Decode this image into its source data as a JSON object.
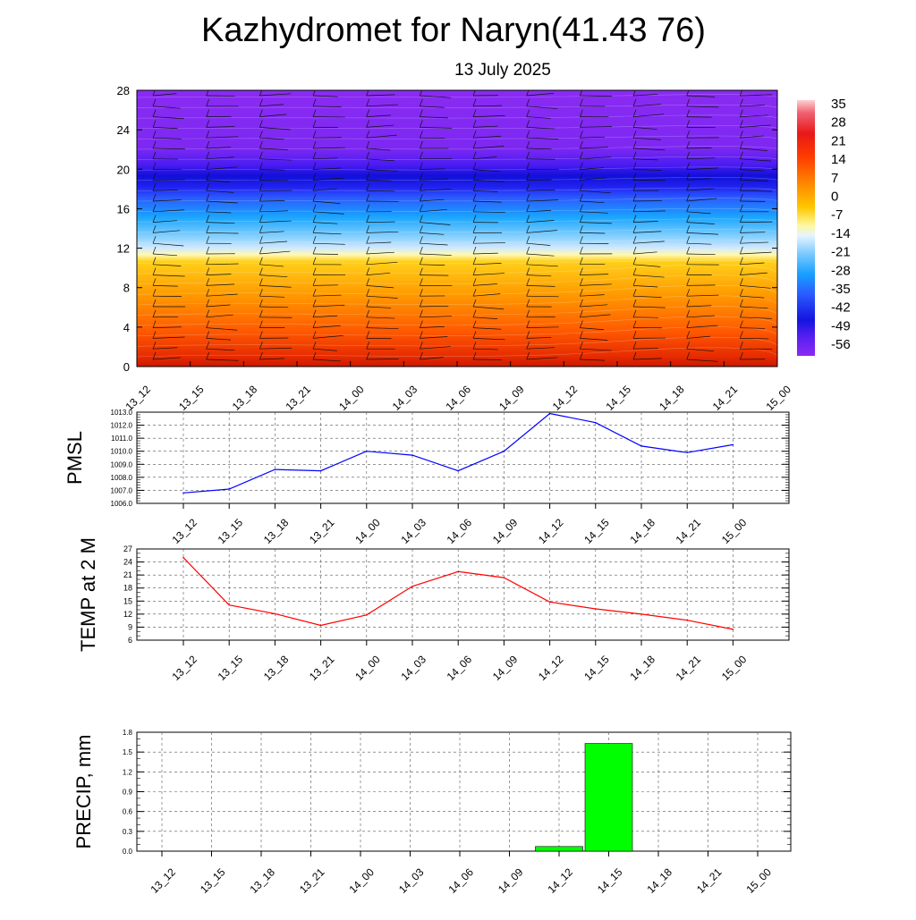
{
  "title": "Kazhydromet for Naryn(41.43 76)",
  "subtitle": "13 July 2025",
  "time_labels": [
    "13_12",
    "13_15",
    "13_18",
    "13_21",
    "14_00",
    "14_03",
    "14_06",
    "14_09",
    "14_12",
    "14_15",
    "14_18",
    "14_21",
    "15_00"
  ],
  "colorbar": {
    "labels": [
      "35",
      "28",
      "21",
      "14",
      "7",
      "0",
      "-7",
      "-14",
      "-21",
      "-28",
      "-35",
      "-42",
      "-49",
      "-56"
    ]
  },
  "chart_data": [
    {
      "type": "heatmap",
      "description_note": "",
      "x": [
        "13_12",
        "13_15",
        "13_18",
        "13_21",
        "14_00",
        "14_03",
        "14_06",
        "14_09",
        "14_12",
        "14_15",
        "14_18",
        "14_21",
        "15_00"
      ],
      "ylim": [
        0,
        28
      ],
      "yticks": [
        "0",
        "4",
        "8",
        "12",
        "16",
        "20",
        "24",
        "28"
      ],
      "colorbar_range": [
        -56,
        35
      ],
      "wind_barbs": true
    },
    {
      "type": "line",
      "ylabel": "PMSL",
      "color": "#0000ff",
      "x": [
        "13_12",
        "13_15",
        "13_18",
        "13_21",
        "14_00",
        "14_03",
        "14_06",
        "14_09",
        "14_12",
        "14_15",
        "14_18",
        "14_21",
        "15_00"
      ],
      "values": [
        1006.8,
        1007.1,
        1008.6,
        1008.5,
        1010.0,
        1009.7,
        1008.5,
        1010.0,
        1012.9,
        1012.2,
        1010.4,
        1009.9,
        1010.5
      ],
      "ylim": [
        1006.0,
        1013.0
      ],
      "yticks": [
        "1006.0",
        "1007.0",
        "1008.0",
        "1009.0",
        "1010.0",
        "1011.0",
        "1012.0",
        "1013.0"
      ]
    },
    {
      "type": "line",
      "ylabel": "TEMP at 2 M",
      "color": "#ff0000",
      "x": [
        "13_12",
        "13_15",
        "13_18",
        "13_21",
        "14_00",
        "14_03",
        "14_06",
        "14_09",
        "14_12",
        "14_15",
        "14_18",
        "14_21",
        "15_00"
      ],
      "values": [
        25.0,
        14.1,
        12.1,
        9.4,
        11.8,
        18.4,
        21.8,
        20.4,
        14.8,
        13.2,
        12.0,
        10.6,
        8.5
      ],
      "ylim": [
        6,
        27
      ],
      "yticks": [
        "6",
        "9",
        "12",
        "15",
        "18",
        "21",
        "24",
        "27"
      ]
    },
    {
      "type": "bar",
      "ylabel": "PRECIP, mm",
      "color": "#00ff00",
      "categories": [
        "13_12",
        "13_15",
        "13_18",
        "13_21",
        "14_00",
        "14_03",
        "14_06",
        "14_09",
        "14_12",
        "14_15",
        "14_18",
        "14_21",
        "15_00"
      ],
      "values": [
        0,
        0,
        0,
        0,
        0,
        0,
        0,
        0,
        0.07,
        1.63,
        0,
        0,
        0
      ],
      "ylim": [
        0,
        1.8
      ],
      "yticks": [
        "0.0",
        "0.3",
        "0.6",
        "0.9",
        "1.2",
        "1.5",
        "1.8"
      ]
    }
  ]
}
